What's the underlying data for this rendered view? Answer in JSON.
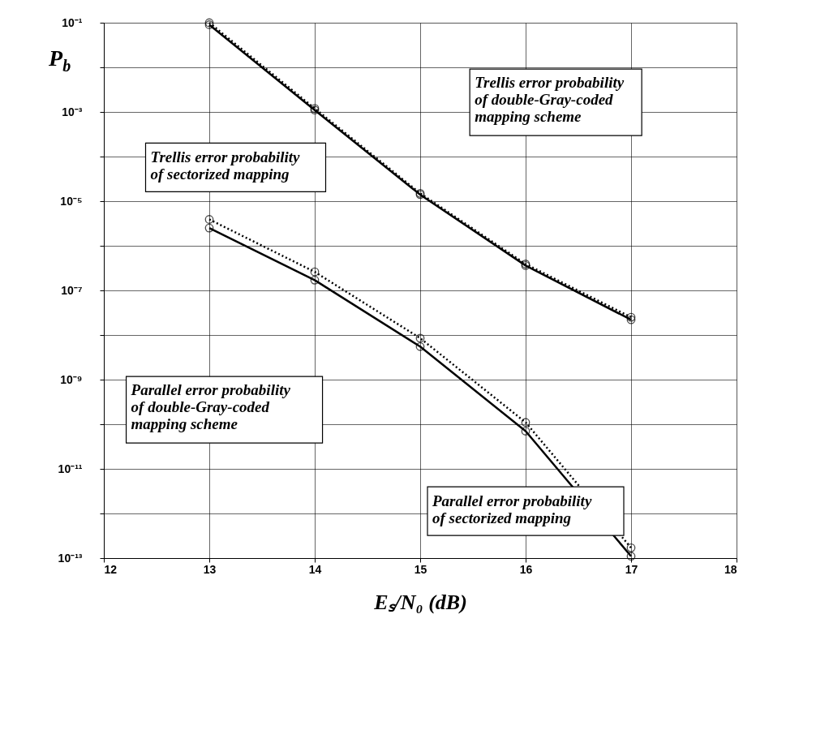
{
  "chart_data": {
    "type": "line",
    "xlabel": "Eₛ/N₀ (dB)",
    "ylabel": "P$_{b}$",
    "log": "y",
    "grid": true,
    "marker": "circle",
    "xlim": [
      12,
      18
    ],
    "xticks": [
      12,
      13,
      14,
      15,
      16,
      17,
      18
    ],
    "ylim": [
      1e-13,
      0.1
    ],
    "yticks": [
      {
        "value": 1e-13,
        "label": "10⁻¹³"
      },
      {
        "value": 1e-12,
        "label": null
      },
      {
        "value": 1e-11,
        "label": "10⁻¹¹"
      },
      {
        "value": 1e-10,
        "label": null
      },
      {
        "value": 1e-09,
        "label": "10⁻⁹"
      },
      {
        "value": 1e-08,
        "label": null
      },
      {
        "value": 1e-07,
        "label": "10⁻⁷"
      },
      {
        "value": 1e-06,
        "label": null
      },
      {
        "value": 1e-05,
        "label": "10⁻⁵"
      },
      {
        "value": 0.0001,
        "label": null
      },
      {
        "value": 0.001,
        "label": "10⁻³"
      },
      {
        "value": 0.01,
        "label": null
      },
      {
        "value": 0.1,
        "label": "10⁻¹"
      }
    ],
    "x": [
      13,
      14,
      15,
      16,
      17
    ],
    "series": [
      {
        "color": "#000000",
        "line_style": "solid",
        "values": [
          0.09,
          0.0011,
          1.4e-05,
          3.6e-07,
          2.2e-08
        ]
      },
      {
        "color": "#000000",
        "line_style": "dotted",
        "values": [
          0.1,
          0.0012,
          1.5e-05,
          3.9e-07,
          2.5e-08
        ]
      },
      {
        "color": "#000000",
        "line_style": "solid",
        "values": [
          2.5e-06,
          1.7e-07,
          5.5e-09,
          7e-11,
          1.1e-13
        ]
      },
      {
        "color": "#000000",
        "line_style": "dotted",
        "values": [
          3.9e-06,
          2.6e-07,
          8.5e-09,
          1.1e-10,
          1.7e-13
        ]
      }
    ],
    "annotations": [
      "Trellis error probability\nof double-Gray-coded\nmapping scheme",
      "Trellis error probability\nof sectorized mapping",
      "Parallel error probability\nof double-Gray-coded\nmapping scheme",
      "Parallel error probability\nof sectorized mapping"
    ]
  }
}
